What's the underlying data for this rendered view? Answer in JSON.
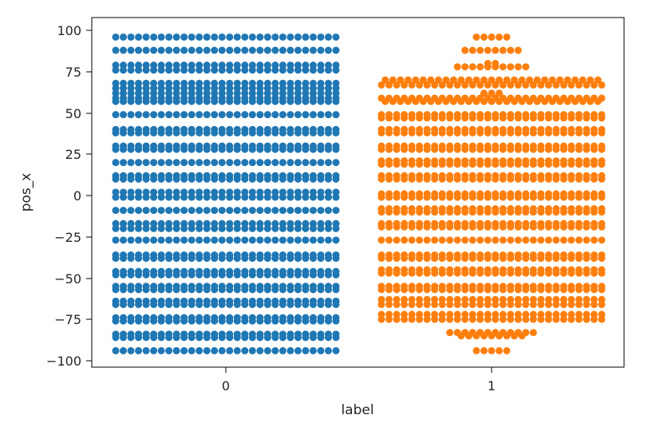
{
  "chart_data": {
    "type": "swarm",
    "title": "",
    "xlabel": "label",
    "ylabel": "pos_x",
    "categories": [
      "0",
      "1"
    ],
    "ylim": [
      -105,
      105
    ],
    "yticks": [
      100,
      75,
      50,
      25,
      0,
      -25,
      -50,
      -75,
      -100
    ],
    "ytick_labels": [
      "100",
      "75",
      "50",
      "25",
      "0",
      "−25",
      "−50",
      "−75",
      "−100"
    ],
    "grid": false,
    "legend": "none",
    "colors": [
      "#1f77b4",
      "#ff7f0e"
    ],
    "series": [
      {
        "category": "0",
        "color": "#1f77b4",
        "rows": [
          {
            "y": 96,
            "count": 30
          },
          {
            "y": 88,
            "count": 30
          },
          {
            "y": 79,
            "count": 30
          },
          {
            "y": 76,
            "count": 30
          },
          {
            "y": 68,
            "count": 30
          },
          {
            "y": 65,
            "count": 30
          },
          {
            "y": 62,
            "count": 30
          },
          {
            "y": 59,
            "count": 30
          },
          {
            "y": 57,
            "count": 30
          },
          {
            "y": 49,
            "count": 30
          },
          {
            "y": 40,
            "count": 30
          },
          {
            "y": 38,
            "count": 30
          },
          {
            "y": 30,
            "count": 30
          },
          {
            "y": 28,
            "count": 30
          },
          {
            "y": 20,
            "count": 30
          },
          {
            "y": 12,
            "count": 30
          },
          {
            "y": 10,
            "count": 30
          },
          {
            "y": 2,
            "count": 30
          },
          {
            "y": -1,
            "count": 30
          },
          {
            "y": -9,
            "count": 30
          },
          {
            "y": -17,
            "count": 30
          },
          {
            "y": -20,
            "count": 30
          },
          {
            "y": -27,
            "count": 30
          },
          {
            "y": -36,
            "count": 30
          },
          {
            "y": -38,
            "count": 30
          },
          {
            "y": -46,
            "count": 30
          },
          {
            "y": -48,
            "count": 30
          },
          {
            "y": -55,
            "count": 30
          },
          {
            "y": -57,
            "count": 30
          },
          {
            "y": -64,
            "count": 30
          },
          {
            "y": -66,
            "count": 30
          },
          {
            "y": -74,
            "count": 30
          },
          {
            "y": -76,
            "count": 30
          },
          {
            "y": -84,
            "count": 30
          },
          {
            "y": -86,
            "count": 30
          },
          {
            "y": -94,
            "count": 30
          }
        ]
      },
      {
        "category": "1",
        "color": "#ff7f0e",
        "rows": [
          {
            "y": 96,
            "count": 5
          },
          {
            "y": 88,
            "count": 8
          },
          {
            "y": 80,
            "count": 2
          },
          {
            "y": 78,
            "count": 10
          },
          {
            "y": 70,
            "count": 29
          },
          {
            "y": 67,
            "count": 30
          },
          {
            "y": 62,
            "count": 3
          },
          {
            "y": 59,
            "count": 30
          },
          {
            "y": 57,
            "count": 29
          },
          {
            "y": 49,
            "count": 30
          },
          {
            "y": 47,
            "count": 30
          },
          {
            "y": 40,
            "count": 30
          },
          {
            "y": 38,
            "count": 30
          },
          {
            "y": 30,
            "count": 30
          },
          {
            "y": 28,
            "count": 30
          },
          {
            "y": 21,
            "count": 30
          },
          {
            "y": 19,
            "count": 30
          },
          {
            "y": 12,
            "count": 30
          },
          {
            "y": 10,
            "count": 30
          },
          {
            "y": 1,
            "count": 30
          },
          {
            "y": -1,
            "count": 30
          },
          {
            "y": -8,
            "count": 30
          },
          {
            "y": -10,
            "count": 30
          },
          {
            "y": -17,
            "count": 30
          },
          {
            "y": -19,
            "count": 30
          },
          {
            "y": -27,
            "count": 30
          },
          {
            "y": -36,
            "count": 30
          },
          {
            "y": -38,
            "count": 30
          },
          {
            "y": -45,
            "count": 30
          },
          {
            "y": -47,
            "count": 30
          },
          {
            "y": -55,
            "count": 30
          },
          {
            "y": -57,
            "count": 30
          },
          {
            "y": -63,
            "count": 30
          },
          {
            "y": -66,
            "count": 30
          },
          {
            "y": -72,
            "count": 30
          },
          {
            "y": -75,
            "count": 30
          },
          {
            "y": -83,
            "count": 12
          },
          {
            "y": -85,
            "count": 9
          },
          {
            "y": -94,
            "count": 5
          }
        ]
      }
    ]
  }
}
